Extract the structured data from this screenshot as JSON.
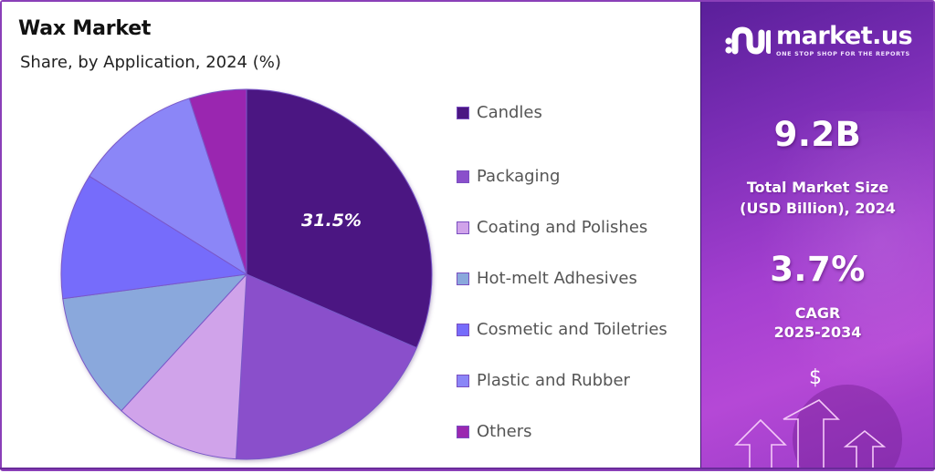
{
  "header": {
    "title": "Wax Market",
    "subtitle": "Share, by Application, 2024 (%)"
  },
  "chart_data": {
    "type": "pie",
    "title": "Wax Market",
    "subtitle": "Share, by Application, 2024 (%)",
    "categories": [
      "Candles",
      "Packaging",
      "Coating and Polishes",
      "Hot-melt Adhesives",
      "Cosmetic and Toiletries",
      "Plastic and Rubber",
      "Others"
    ],
    "values": [
      31.5,
      19.4,
      10.9,
      11.1,
      11.0,
      11.1,
      5.0
    ],
    "colors": [
      "#4b1682",
      "#8a4fcb",
      "#d0a3ea",
      "#8aa8dc",
      "#766cfb",
      "#8b86f7",
      "#9a28b0"
    ],
    "annotations": [
      {
        "category": "Candles",
        "label": "31.5%"
      }
    ],
    "start_angle": "12 o'clock, clockwise",
    "legend_position": "right"
  },
  "legend": {
    "items": [
      {
        "label": "Candles",
        "color": "#4b1682"
      },
      {
        "label": "Packaging",
        "color": "#8a4fcb"
      },
      {
        "label": "Coating and Polishes",
        "color": "#d0a3ea"
      },
      {
        "label": "Hot-melt Adhesives",
        "color": "#8aa8dc"
      },
      {
        "label": "Cosmetic and Toiletries",
        "color": "#766cfb"
      },
      {
        "label": "Plastic and Rubber",
        "color": "#8b86f7"
      },
      {
        "label": "Others",
        "color": "#9a28b0"
      }
    ]
  },
  "pie_label": "31.5%",
  "brand": {
    "name": "market.us",
    "tagline": "ONE STOP SHOP FOR THE REPORTS"
  },
  "stats": {
    "market_size_value": "9.2B",
    "market_size_label_line1": "Total Market Size",
    "market_size_label_line2": "(USD Billion), 2024",
    "cagr_value": "3.7%",
    "cagr_label_line1": "CAGR",
    "cagr_label_line2": "2025-2034"
  },
  "icons": {
    "dollar": "$"
  }
}
